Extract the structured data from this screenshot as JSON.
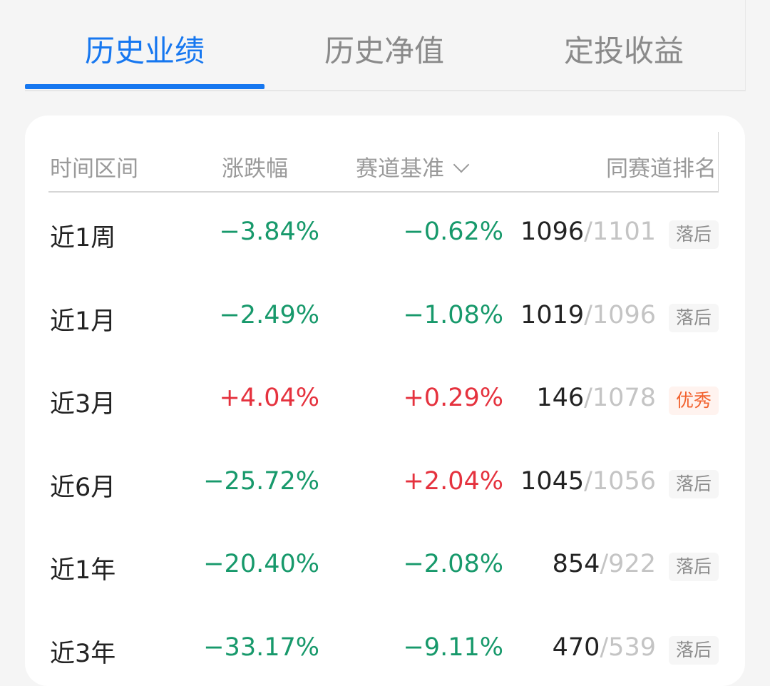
{
  "tabs": [
    {
      "label": "历史业绩",
      "active": true
    },
    {
      "label": "历史净值",
      "active": false
    },
    {
      "label": "定投收益",
      "active": false
    }
  ],
  "colors": {
    "accent": "#1677f0",
    "down": "#17996b",
    "up": "#e5323e",
    "excellent": "#f2622e",
    "lagging": "#8c8c8c"
  },
  "table": {
    "headers": {
      "period": "时间区间",
      "change": "涨跌幅",
      "benchmark": "赛道基准",
      "rank": "同赛道排名"
    },
    "rows": [
      {
        "period": "近1周",
        "change": "−3.84%",
        "change_dir": "down",
        "benchmark": "−0.62%",
        "benchmark_dir": "down",
        "rank": "1096",
        "total": "/1101",
        "badge": "落后",
        "badge_type": "lag"
      },
      {
        "period": "近1月",
        "change": "−2.49%",
        "change_dir": "down",
        "benchmark": "−1.08%",
        "benchmark_dir": "down",
        "rank": "1019",
        "total": "/1096",
        "badge": "落后",
        "badge_type": "lag"
      },
      {
        "period": "近3月",
        "change": "+4.04%",
        "change_dir": "up",
        "benchmark": "+0.29%",
        "benchmark_dir": "up",
        "rank": "146",
        "total": "/1078",
        "badge": "优秀",
        "badge_type": "good"
      },
      {
        "period": "近6月",
        "change": "−25.72%",
        "change_dir": "down",
        "benchmark": "+2.04%",
        "benchmark_dir": "up",
        "rank": "1045",
        "total": "/1056",
        "badge": "落后",
        "badge_type": "lag"
      },
      {
        "period": "近1年",
        "change": "−20.40%",
        "change_dir": "down",
        "benchmark": "−2.08%",
        "benchmark_dir": "down",
        "rank": "854",
        "total": "/922",
        "badge": "落后",
        "badge_type": "lag"
      },
      {
        "period": "近3年",
        "change": "−33.17%",
        "change_dir": "down",
        "benchmark": "−9.11%",
        "benchmark_dir": "down",
        "rank": "470",
        "total": "/539",
        "badge": "落后",
        "badge_type": "lag"
      }
    ]
  }
}
